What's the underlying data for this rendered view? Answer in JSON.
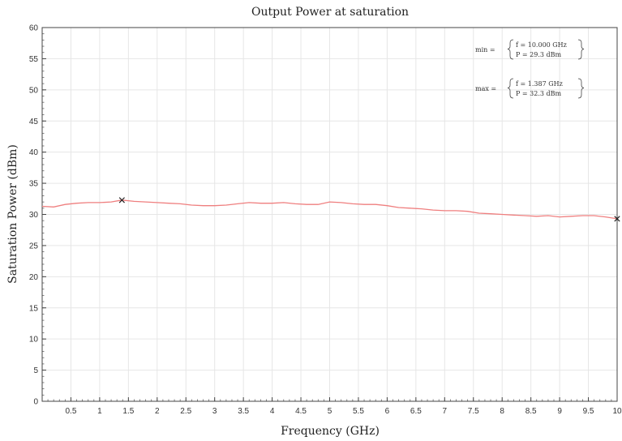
{
  "chart_data": {
    "type": "line",
    "title": "Output Power at saturation",
    "xlabel": "Frequency (GHz)",
    "ylabel": "Saturation Power (dBm)",
    "xlim": [
      0,
      10
    ],
    "ylim": [
      0,
      60
    ],
    "grid": true,
    "x_ticks": [
      0.5,
      1,
      1.5,
      2,
      2.5,
      3,
      3.5,
      4,
      4.5,
      5,
      5.5,
      6,
      6.5,
      7,
      7.5,
      8,
      8.5,
      9,
      9.5,
      10
    ],
    "x_tick_labels": [
      "0.5",
      "1",
      "1.5",
      "2",
      "2.5",
      "3",
      "3.5",
      "4",
      "4.5",
      "5",
      "5.5",
      "6",
      "6.5",
      "7",
      "7.5",
      "8",
      "8.5",
      "9",
      "9.5",
      "10"
    ],
    "y_ticks": [
      0,
      5,
      10,
      15,
      20,
      25,
      30,
      35,
      40,
      45,
      50,
      55,
      60
    ],
    "y_tick_labels": [
      "0",
      "5",
      "10",
      "15",
      "20",
      "25",
      "30",
      "35",
      "40",
      "45",
      "50",
      "55",
      "60"
    ],
    "series": [
      {
        "color": "#ef7f7f",
        "x": [
          0,
          0.2,
          0.4,
          0.6,
          0.8,
          1.0,
          1.2,
          1.387,
          1.6,
          1.8,
          2.0,
          2.2,
          2.4,
          2.6,
          2.8,
          3.0,
          3.2,
          3.4,
          3.6,
          3.8,
          4.0,
          4.2,
          4.4,
          4.6,
          4.8,
          5.0,
          5.2,
          5.4,
          5.6,
          5.8,
          6.0,
          6.2,
          6.4,
          6.6,
          6.8,
          7.0,
          7.2,
          7.4,
          7.6,
          7.8,
          8.0,
          8.2,
          8.4,
          8.6,
          8.8,
          9.0,
          9.2,
          9.4,
          9.6,
          9.8,
          10.0
        ],
        "y": [
          31.3,
          31.2,
          31.6,
          31.8,
          31.9,
          31.9,
          32.0,
          32.3,
          32.1,
          32.0,
          31.9,
          31.8,
          31.7,
          31.5,
          31.4,
          31.4,
          31.5,
          31.7,
          31.9,
          31.8,
          31.8,
          31.9,
          31.7,
          31.6,
          31.6,
          32.0,
          31.9,
          31.7,
          31.6,
          31.6,
          31.4,
          31.1,
          31.0,
          30.9,
          30.7,
          30.6,
          30.6,
          30.5,
          30.2,
          30.1,
          30.0,
          29.9,
          29.8,
          29.7,
          29.8,
          29.6,
          29.7,
          29.8,
          29.8,
          29.6,
          29.3
        ]
      }
    ],
    "markers": [
      {
        "x": 1.387,
        "y": 32.3
      },
      {
        "x": 10.0,
        "y": 29.3
      }
    ],
    "annotations": {
      "min_label": "min =",
      "min_f": "f = 10.000 GHz",
      "min_p": "P = 29.3 dBm",
      "max_label": "max =",
      "max_f": "f = 1.387 GHz",
      "max_p": "P = 32.3 dBm"
    }
  }
}
